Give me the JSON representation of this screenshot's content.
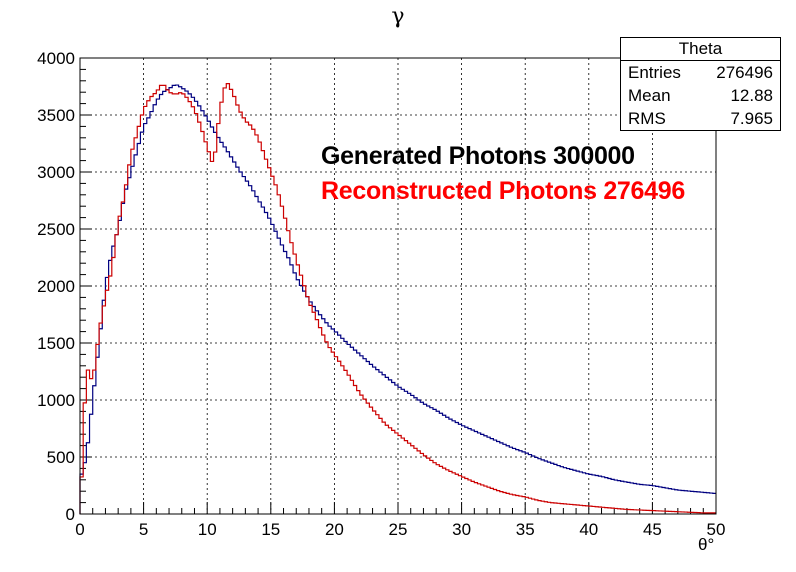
{
  "title": "γ",
  "stats": {
    "name": "Theta",
    "rows": [
      {
        "label": "Entries",
        "value": "276496"
      },
      {
        "label": "Mean",
        "value": "12.88"
      },
      {
        "label": "RMS",
        "value": "7.965"
      }
    ]
  },
  "legend": {
    "generated": "Generated Photons 300000",
    "reconstructed": "Reconstructed Photons 276496"
  },
  "colors": {
    "generated": "#000080",
    "reconstructed": "#cc0000"
  },
  "chart_data": {
    "type": "histogram-step",
    "xlabel": "θ°",
    "ylabel": "",
    "xlim": [
      0,
      50
    ],
    "ylim": [
      0,
      4000
    ],
    "xticks": [
      0,
      5,
      10,
      15,
      20,
      25,
      30,
      35,
      40,
      45,
      50
    ],
    "yticks": [
      0,
      500,
      1000,
      1500,
      2000,
      2500,
      3000,
      3500,
      4000
    ],
    "grid": true,
    "bin_width": 0.25,
    "series": [
      {
        "key": "generated",
        "points": [
          [
            0,
            300
          ],
          [
            0.5,
            500
          ],
          [
            1,
            1000
          ],
          [
            1.5,
            1500
          ],
          [
            2,
            2000
          ],
          [
            2.5,
            2300
          ],
          [
            3,
            2500
          ],
          [
            3.5,
            2800
          ],
          [
            4,
            3000
          ],
          [
            4.5,
            3200
          ],
          [
            5,
            3400
          ],
          [
            5.5,
            3500
          ],
          [
            6,
            3620
          ],
          [
            6.5,
            3700
          ],
          [
            7,
            3730
          ],
          [
            7.5,
            3770
          ],
          [
            8,
            3740
          ],
          [
            8.5,
            3700
          ],
          [
            9,
            3640
          ],
          [
            9.5,
            3560
          ],
          [
            10,
            3470
          ],
          [
            10.5,
            3370
          ],
          [
            11,
            3280
          ],
          [
            11.5,
            3200
          ],
          [
            12,
            3110
          ],
          [
            12.5,
            3020
          ],
          [
            13,
            2940
          ],
          [
            13.5,
            2860
          ],
          [
            14,
            2760
          ],
          [
            14.5,
            2670
          ],
          [
            15,
            2570
          ],
          [
            15.5,
            2450
          ],
          [
            16,
            2330
          ],
          [
            16.5,
            2220
          ],
          [
            17,
            2080
          ],
          [
            17.5,
            1980
          ],
          [
            18,
            1880
          ],
          [
            18.5,
            1800
          ],
          [
            19,
            1730
          ],
          [
            19.5,
            1660
          ],
          [
            20,
            1610
          ],
          [
            21,
            1500
          ],
          [
            22,
            1400
          ],
          [
            23,
            1300
          ],
          [
            24,
            1210
          ],
          [
            25,
            1120
          ],
          [
            26,
            1050
          ],
          [
            27,
            970
          ],
          [
            28,
            910
          ],
          [
            29,
            840
          ],
          [
            30,
            780
          ],
          [
            31,
            730
          ],
          [
            32,
            680
          ],
          [
            33,
            630
          ],
          [
            34,
            580
          ],
          [
            35,
            540
          ],
          [
            36,
            490
          ],
          [
            37,
            450
          ],
          [
            38,
            410
          ],
          [
            39,
            380
          ],
          [
            40,
            350
          ],
          [
            41,
            330
          ],
          [
            42,
            300
          ],
          [
            43,
            280
          ],
          [
            44,
            260
          ],
          [
            45,
            250
          ],
          [
            46,
            230
          ],
          [
            47,
            210
          ],
          [
            48,
            200
          ],
          [
            49,
            190
          ],
          [
            50,
            180
          ]
        ]
      },
      {
        "key": "reconstructed",
        "points": [
          [
            0,
            0
          ],
          [
            0.5,
            1300
          ],
          [
            1,
            1150
          ],
          [
            1.5,
            1600
          ],
          [
            2,
            1900
          ],
          [
            2.5,
            2150
          ],
          [
            3,
            2550
          ],
          [
            3.5,
            2800
          ],
          [
            4,
            3150
          ],
          [
            4.5,
            3350
          ],
          [
            5,
            3550
          ],
          [
            5.5,
            3650
          ],
          [
            6,
            3700
          ],
          [
            6.5,
            3780
          ],
          [
            7,
            3700
          ],
          [
            7.5,
            3680
          ],
          [
            8,
            3700
          ],
          [
            8.5,
            3640
          ],
          [
            9,
            3550
          ],
          [
            9.5,
            3400
          ],
          [
            10,
            3220
          ],
          [
            10.5,
            3050
          ],
          [
            11,
            3550
          ],
          [
            11.5,
            3800
          ],
          [
            12,
            3700
          ],
          [
            12.5,
            3550
          ],
          [
            13,
            3450
          ],
          [
            13.5,
            3400
          ],
          [
            14,
            3300
          ],
          [
            14.5,
            3150
          ],
          [
            15,
            3000
          ],
          [
            15.5,
            2850
          ],
          [
            16,
            2650
          ],
          [
            16.5,
            2430
          ],
          [
            17,
            2230
          ],
          [
            17.5,
            2050
          ],
          [
            18,
            1860
          ],
          [
            18.5,
            1740
          ],
          [
            19,
            1600
          ],
          [
            19.5,
            1480
          ],
          [
            20,
            1400
          ],
          [
            21,
            1240
          ],
          [
            22,
            1060
          ],
          [
            23,
            920
          ],
          [
            24,
            790
          ],
          [
            25,
            700
          ],
          [
            26,
            610
          ],
          [
            27,
            520
          ],
          [
            28,
            440
          ],
          [
            29,
            380
          ],
          [
            30,
            330
          ],
          [
            31,
            280
          ],
          [
            32,
            240
          ],
          [
            33,
            200
          ],
          [
            34,
            170
          ],
          [
            35,
            150
          ],
          [
            36,
            120
          ],
          [
            37,
            100
          ],
          [
            38,
            90
          ],
          [
            39,
            80
          ],
          [
            40,
            70
          ],
          [
            41,
            60
          ],
          [
            42,
            50
          ],
          [
            43,
            40
          ],
          [
            44,
            35
          ],
          [
            45,
            30
          ],
          [
            46,
            25
          ],
          [
            47,
            20
          ],
          [
            48,
            15
          ],
          [
            49,
            10
          ],
          [
            50,
            10
          ]
        ]
      }
    ]
  }
}
